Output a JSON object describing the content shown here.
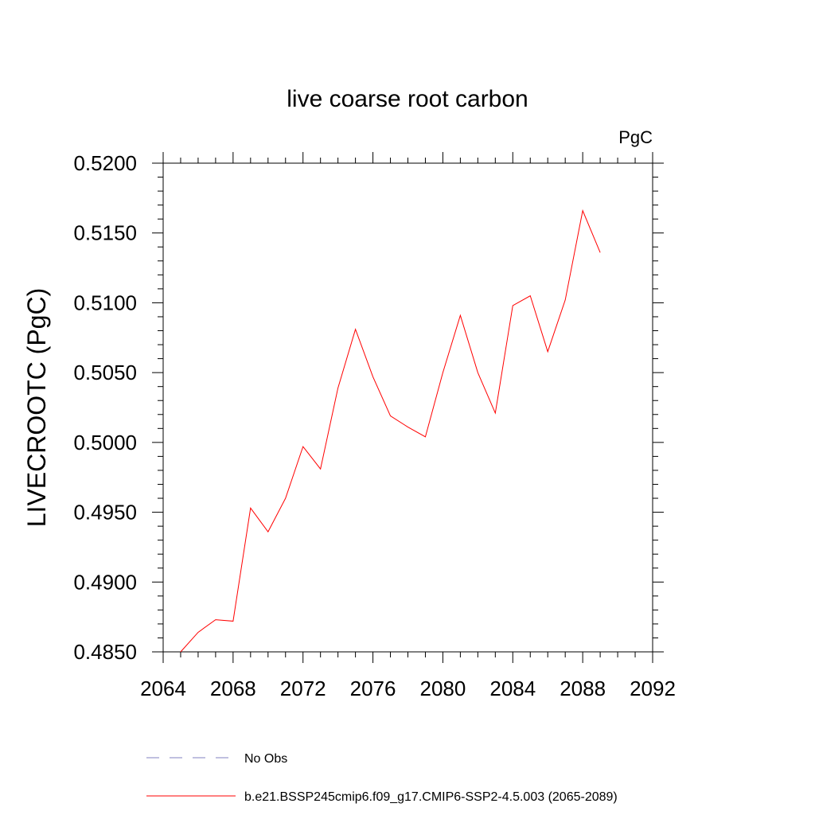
{
  "chart_data": {
    "type": "line",
    "title": "live coarse root carbon",
    "units_label": "PgC",
    "ylabel": "LIVECROOTC  (PgC)",
    "xlabel": "",
    "xlim": [
      2064,
      2092
    ],
    "ylim": [
      0.485,
      0.52
    ],
    "x_ticks": [
      2064,
      2068,
      2072,
      2076,
      2080,
      2084,
      2088,
      2092
    ],
    "x_tick_labels": [
      "2064",
      "2068",
      "2072",
      "2076",
      "2080",
      "2084",
      "2088",
      "2092"
    ],
    "y_ticks": [
      0.485,
      0.49,
      0.495,
      0.5,
      0.505,
      0.51,
      0.515,
      0.52
    ],
    "y_tick_labels": [
      "0.4850",
      "0.4900",
      "0.4950",
      "0.5000",
      "0.5050",
      "0.5100",
      "0.5150",
      "0.5200"
    ],
    "grid": false,
    "legend_position": "bottom",
    "series": [
      {
        "name": "b.e21.BSSP245cmip6.f09_g17.CMIP6-SSP2-4.5.003 (2065-2089)",
        "color": "#ff0000",
        "style": "solid",
        "x": [
          2065,
          2066,
          2067,
          2068,
          2069,
          2070,
          2071,
          2072,
          2073,
          2074,
          2075,
          2076,
          2077,
          2078,
          2079,
          2080,
          2081,
          2082,
          2083,
          2084,
          2085,
          2086,
          2087,
          2088,
          2089
        ],
        "y": [
          0.485,
          0.4864,
          0.4873,
          0.4872,
          0.4953,
          0.4936,
          0.496,
          0.4997,
          0.4981,
          0.5039,
          0.5081,
          0.5047,
          0.5019,
          0.5011,
          0.5004,
          0.505,
          0.5091,
          0.505,
          0.5021,
          0.5098,
          0.5105,
          0.5065,
          0.5102,
          0.5166,
          0.5136
        ]
      }
    ],
    "legend": [
      {
        "label": "No Obs",
        "color": "#8080c0",
        "style": "dashed"
      },
      {
        "label": "b.e21.BSSP245cmip6.f09_g17.CMIP6-SSP2-4.5.003 (2065-2089)",
        "color": "#ff0000",
        "style": "solid"
      }
    ]
  }
}
